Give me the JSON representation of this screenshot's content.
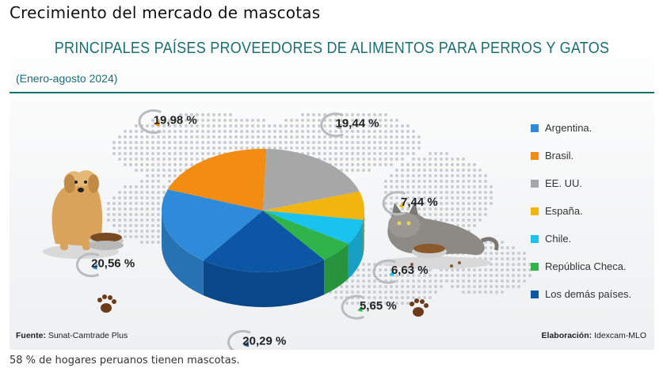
{
  "page": {
    "heading": "Crecimiento del mercado de mascotas",
    "caption": "58 % de hogares peruanos tienen mascotas."
  },
  "infographic": {
    "source_label": "Fuente:",
    "source_value": "Sunat-Camtrade Plus",
    "credit_label": "Elaboración:",
    "credit_value": "Idexcam-MLO",
    "illustrations": [
      "dog-with-food-bowl",
      "cat-with-food-bowl",
      "paw-print-icon",
      "paw-print-icon",
      "dotted-world-map"
    ],
    "accent_color": "#1a6f73"
  },
  "chart_data": {
    "type": "pie",
    "title": "PRINCIPALES PAÍSES PROVEEDORES DE ALIMENTOS PARA PERROS Y GATOS",
    "subtitle": "(Enero-agosto 2024)",
    "legend_position": "right",
    "labels": [
      "Argentina.",
      "Brasil.",
      "EE. UU.",
      "España.",
      "Chile.",
      "República Checa.",
      "Los demás países."
    ],
    "values": [
      20.56,
      19.98,
      19.44,
      7.44,
      6.63,
      5.65,
      20.29
    ],
    "value_labels": [
      "20,56 %",
      "19,98 %",
      "19,44 %",
      "7,44 %",
      "6,63 %",
      "5,65 %",
      "20,29 %"
    ],
    "colors": [
      "#2e8bd9",
      "#f28c12",
      "#a7a7a7",
      "#f2b50f",
      "#19c3ef",
      "#2fb34a",
      "#0b57a6"
    ]
  }
}
